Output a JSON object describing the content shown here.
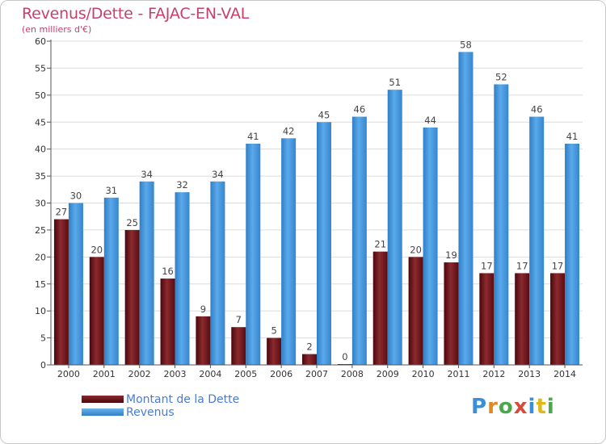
{
  "header": {
    "title": "Revenus/Dette - FAJAC-EN-VAL",
    "subtitle": "(en milliers d'€)"
  },
  "logo": {
    "letters": [
      "P",
      "r",
      "o",
      "x",
      "i",
      "t",
      "i"
    ],
    "colors": [
      "#3a8fd8",
      "#e08a1e",
      "#4aa84a",
      "#d84a3a",
      "#3a8fd8",
      "#e0b81e",
      "#4aa84a"
    ]
  },
  "legend": {
    "items": [
      {
        "label": "Montant de la Dette",
        "color": "#6b0f14"
      },
      {
        "label": "Revenus",
        "color": "#3d8fd6"
      }
    ]
  },
  "chart_data": {
    "type": "bar",
    "title": "Revenus/Dette - FAJAC-EN-VAL",
    "subtitle": "(en milliers d'€)",
    "categories": [
      "2000",
      "2001",
      "2002",
      "2003",
      "2004",
      "2005",
      "2006",
      "2007",
      "2008",
      "2009",
      "2010",
      "2011",
      "2012",
      "2013",
      "2014"
    ],
    "series": [
      {
        "name": "Montant de la Dette",
        "color": "#7a1a1f",
        "values": [
          27,
          20,
          25,
          16,
          9,
          7,
          5,
          2,
          0,
          21,
          20,
          19,
          17,
          17,
          17
        ]
      },
      {
        "name": "Revenus",
        "color": "#3d8fd6",
        "values": [
          30,
          31,
          34,
          32,
          34,
          41,
          42,
          45,
          46,
          51,
          44,
          58,
          52,
          46,
          41
        ]
      }
    ],
    "ylim": [
      0,
      60
    ],
    "yticks": [
      0,
      5,
      10,
      15,
      20,
      25,
      30,
      35,
      40,
      45,
      50,
      55,
      60
    ],
    "grid": true,
    "legend_position": "bottom-left"
  }
}
